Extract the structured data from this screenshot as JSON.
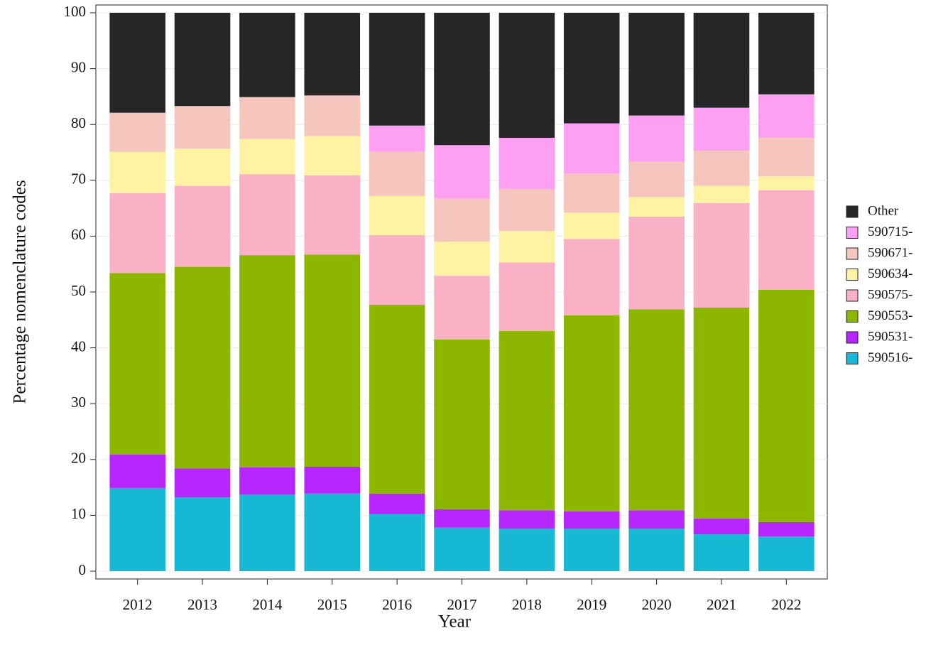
{
  "chart_data": {
    "type": "stacked_bar",
    "x_label": "Year",
    "y_label": "Percentage nomenclature codes",
    "categories": [
      "2012",
      "2013",
      "2014",
      "2015",
      "2016",
      "2017",
      "2018",
      "2019",
      "2020",
      "2021",
      "2022"
    ],
    "series": [
      {
        "name": "590516-",
        "color": "#17b8d4",
        "values": [
          14.9,
          13.2,
          13.7,
          13.9,
          10.2,
          7.8,
          7.6,
          7.6,
          7.6,
          6.6,
          6.2
        ]
      },
      {
        "name": "590531-",
        "color": "#b726ff",
        "values": [
          6.0,
          5.2,
          4.9,
          4.8,
          3.7,
          3.3,
          3.3,
          3.1,
          3.3,
          2.8,
          2.6
        ]
      },
      {
        "name": "590553-",
        "color": "#8db600",
        "values": [
          32.5,
          36.1,
          38.0,
          38.0,
          33.8,
          30.4,
          32.1,
          35.1,
          36.0,
          37.8,
          41.6
        ]
      },
      {
        "name": "590575-",
        "color": "#fab0c5",
        "values": [
          14.3,
          14.5,
          14.5,
          14.2,
          12.5,
          11.4,
          12.3,
          13.7,
          16.6,
          18.7,
          17.8
        ]
      },
      {
        "name": "590634-",
        "color": "#fef3a2",
        "values": [
          7.4,
          6.7,
          6.3,
          7.0,
          7.0,
          6.1,
          5.6,
          4.7,
          3.5,
          3.1,
          2.5
        ]
      },
      {
        "name": "590671-",
        "color": "#f6c5bd",
        "values": [
          7.0,
          7.6,
          7.5,
          7.3,
          7.9,
          7.8,
          7.5,
          7.0,
          6.3,
          6.3,
          6.9
        ]
      },
      {
        "name": "590715-",
        "color": "#fd9ff2",
        "values": [
          0,
          0,
          0,
          0,
          4.7,
          9.5,
          9.2,
          9.0,
          8.3,
          7.7,
          7.8
        ]
      },
      {
        "name": "Other",
        "color": "#262626",
        "values": [
          17.9,
          16.7,
          15.1,
          14.8,
          20.2,
          23.7,
          22.4,
          19.8,
          18.4,
          17.0,
          14.6
        ]
      }
    ],
    "ylim": [
      0,
      100
    ],
    "yticks": [
      0,
      10,
      20,
      30,
      40,
      50,
      60,
      70,
      80,
      90,
      100
    ],
    "grid": true,
    "legend": "right"
  }
}
